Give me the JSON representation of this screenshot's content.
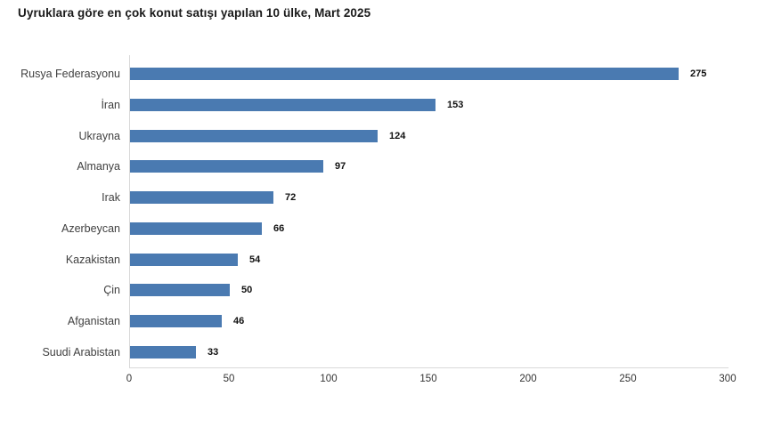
{
  "chart_data": {
    "type": "bar",
    "orientation": "horizontal",
    "title": "Uyruklara göre en çok konut satışı yapılan 10 ülke, Mart 2025",
    "categories": [
      "Rusya Federasyonu",
      "İran",
      "Ukrayna",
      "Almanya",
      "Irak",
      "Azerbeycan",
      "Kazakistan",
      "Çin",
      "Afganistan",
      "Suudi Arabistan"
    ],
    "values": [
      275,
      153,
      124,
      97,
      72,
      66,
      54,
      50,
      46,
      33
    ],
    "value_labels_shown": true,
    "xlabel": "",
    "ylabel": "",
    "xlim": [
      0,
      300
    ],
    "x_ticks": [
      0,
      50,
      100,
      150,
      200,
      250,
      300
    ],
    "grid": false,
    "legend_position": "none",
    "bar_color": "#4a7ab1",
    "axis_line_color": "#d9d9d9",
    "title_color": "#1a1a1a",
    "category_label_color": "#404040",
    "value_label_color": "#111111",
    "background_color": "#ffffff"
  }
}
